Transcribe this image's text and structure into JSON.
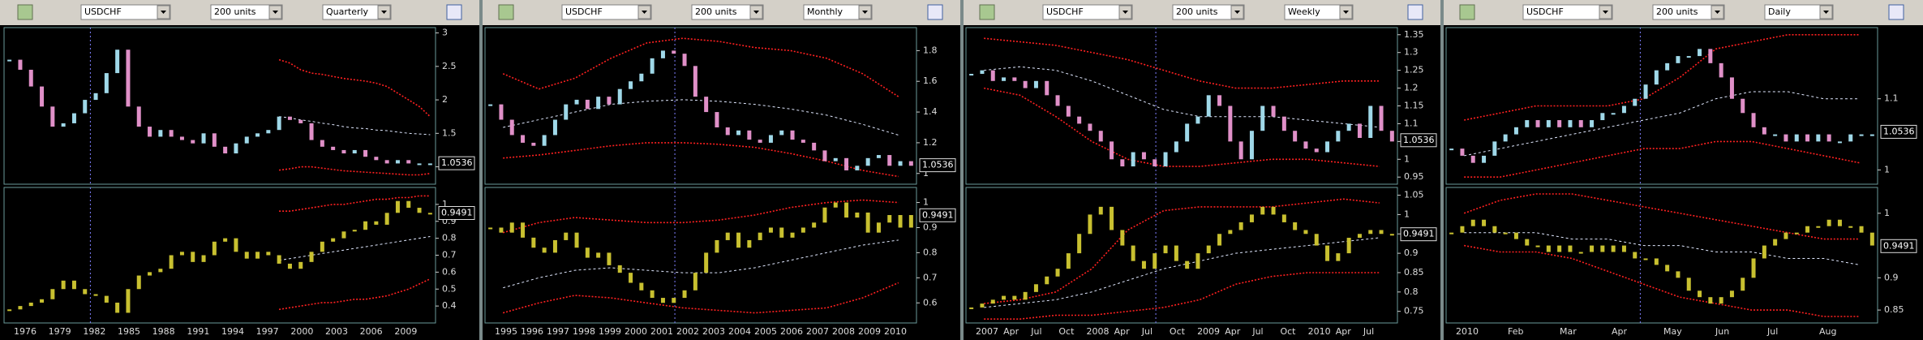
{
  "colors": {
    "up": "#9fd8e8",
    "down": "#e090c8",
    "indicator": "#c8c030",
    "band": "#ff2020",
    "mid": "#e0e8ff"
  },
  "panels": [
    {
      "toolbar": {
        "symbol": "USDCHF",
        "units": "200 units",
        "period": "Quarterly"
      },
      "xlabels": [
        "1976",
        "1979",
        "1982",
        "1985",
        "1988",
        "1991",
        "1994",
        "1997",
        "2000",
        "2003",
        "2006",
        "2009"
      ],
      "upper": {
        "ylim": [
          0.74,
          3.08
        ],
        "yticks": [
          1,
          1.5,
          2,
          2.5,
          3
        ],
        "last_label": 1.0536,
        "price": [
          2.6,
          2.45,
          2.2,
          1.9,
          1.6,
          1.65,
          1.8,
          2.0,
          2.1,
          2.4,
          2.75,
          1.9,
          1.6,
          1.45,
          1.55,
          1.45,
          1.4,
          1.35,
          1.5,
          1.3,
          1.2,
          1.35,
          1.45,
          1.5,
          1.55,
          1.75,
          1.7,
          1.65,
          1.4,
          1.3,
          1.25,
          1.2,
          1.25,
          1.15,
          1.1,
          1.05,
          1.1,
          1.05,
          1.05,
          1.05
        ],
        "band_upper": [
          null,
          null,
          null,
          null,
          null,
          null,
          null,
          null,
          null,
          null,
          null,
          null,
          null,
          null,
          null,
          null,
          null,
          null,
          null,
          null,
          null,
          null,
          null,
          null,
          null,
          2.6,
          2.55,
          2.45,
          2.4,
          2.38,
          2.35,
          2.32,
          2.3,
          2.28,
          2.25,
          2.2,
          2.1,
          2.0,
          1.9,
          1.75
        ],
        "band_mid": [
          null,
          null,
          null,
          null,
          null,
          null,
          null,
          null,
          null,
          null,
          null,
          null,
          null,
          null,
          null,
          null,
          null,
          null,
          null,
          null,
          null,
          null,
          null,
          null,
          null,
          1.75,
          1.73,
          1.7,
          1.68,
          1.65,
          1.63,
          1.6,
          1.58,
          1.57,
          1.55,
          1.54,
          1.52,
          1.5,
          1.49,
          1.48
        ],
        "band_lower": [
          null,
          null,
          null,
          null,
          null,
          null,
          null,
          null,
          null,
          null,
          null,
          null,
          null,
          null,
          null,
          null,
          null,
          null,
          null,
          null,
          null,
          null,
          null,
          null,
          null,
          0.95,
          0.97,
          1.0,
          1.0,
          0.98,
          0.96,
          0.94,
          0.93,
          0.92,
          0.91,
          0.9,
          0.89,
          0.88,
          0.88,
          0.9
        ]
      },
      "lower": {
        "ylim": [
          0.3,
          1.1
        ],
        "yticks": [
          0.4,
          0.5,
          0.6,
          0.7,
          0.8,
          0.9,
          1
        ],
        "last_label": 0.9491,
        "indicator": [
          0.38,
          0.4,
          0.42,
          0.44,
          0.5,
          0.55,
          0.5,
          0.47,
          0.46,
          0.42,
          0.36,
          0.5,
          0.58,
          0.6,
          0.62,
          0.7,
          0.72,
          0.66,
          0.7,
          0.78,
          0.8,
          0.72,
          0.68,
          0.72,
          0.7,
          0.65,
          0.62,
          0.66,
          0.72,
          0.78,
          0.8,
          0.84,
          0.85,
          0.9,
          0.88,
          0.95,
          1.02,
          0.98,
          0.95,
          0.95
        ],
        "band_upper": [
          null,
          null,
          null,
          null,
          null,
          null,
          null,
          null,
          null,
          null,
          null,
          null,
          null,
          null,
          null,
          null,
          null,
          null,
          null,
          null,
          null,
          null,
          null,
          null,
          null,
          0.96,
          0.96,
          0.97,
          0.98,
          0.99,
          1.0,
          1.0,
          1.01,
          1.02,
          1.03,
          1.03,
          1.04,
          1.04,
          1.05,
          1.05
        ],
        "band_mid": [
          null,
          null,
          null,
          null,
          null,
          null,
          null,
          null,
          null,
          null,
          null,
          null,
          null,
          null,
          null,
          null,
          null,
          null,
          null,
          null,
          null,
          null,
          null,
          null,
          null,
          0.67,
          0.68,
          0.69,
          0.7,
          0.71,
          0.72,
          0.73,
          0.74,
          0.75,
          0.76,
          0.77,
          0.78,
          0.79,
          0.8,
          0.81
        ],
        "band_lower": [
          null,
          null,
          null,
          null,
          null,
          null,
          null,
          null,
          null,
          null,
          null,
          null,
          null,
          null,
          null,
          null,
          null,
          null,
          null,
          null,
          null,
          null,
          null,
          null,
          null,
          0.38,
          0.39,
          0.4,
          0.41,
          0.42,
          0.42,
          0.43,
          0.44,
          0.44,
          0.45,
          0.46,
          0.48,
          0.5,
          0.53,
          0.56
        ]
      }
    },
    {
      "toolbar": {
        "symbol": "USDCHF",
        "units": "200 units",
        "period": "Monthly"
      },
      "xlabels": [
        "1995",
        "1996",
        "1997",
        "1998",
        "1999",
        "2000",
        "2001",
        "2002",
        "2003",
        "2004",
        "2005",
        "2006",
        "2007",
        "2008",
        "2009",
        "2010"
      ],
      "upper": {
        "ylim": [
          0.93,
          1.95
        ],
        "yticks": [
          1,
          1.2,
          1.4,
          1.6,
          1.8
        ],
        "last_label": 1.0536,
        "price": [
          1.45,
          1.35,
          1.25,
          1.2,
          1.18,
          1.25,
          1.35,
          1.45,
          1.48,
          1.42,
          1.5,
          1.45,
          1.55,
          1.6,
          1.65,
          1.75,
          1.8,
          1.78,
          1.7,
          1.5,
          1.4,
          1.3,
          1.25,
          1.28,
          1.22,
          1.2,
          1.25,
          1.28,
          1.22,
          1.2,
          1.15,
          1.08,
          1.1,
          1.02,
          1.05,
          1.1,
          1.12,
          1.05,
          1.08,
          1.05
        ],
        "band_upper": [
          1.65,
          1.55,
          1.62,
          1.75,
          1.85,
          1.88,
          1.86,
          1.82,
          1.8,
          1.75,
          1.65,
          1.5
        ],
        "band_mid": [
          1.3,
          1.35,
          1.4,
          1.45,
          1.47,
          1.48,
          1.47,
          1.45,
          1.42,
          1.38,
          1.32,
          1.25
        ],
        "band_lower": [
          1.1,
          1.12,
          1.15,
          1.18,
          1.2,
          1.2,
          1.19,
          1.17,
          1.13,
          1.08,
          1.02,
          0.98
        ]
      },
      "lower": {
        "ylim": [
          0.52,
          1.06
        ],
        "yticks": [
          0.6,
          0.7,
          0.8,
          0.9,
          1
        ],
        "last_label": 0.9491,
        "indicator": [
          0.9,
          0.88,
          0.92,
          0.86,
          0.82,
          0.8,
          0.85,
          0.88,
          0.82,
          0.78,
          0.8,
          0.75,
          0.72,
          0.68,
          0.65,
          0.62,
          0.6,
          0.62,
          0.65,
          0.72,
          0.8,
          0.85,
          0.88,
          0.82,
          0.85,
          0.88,
          0.9,
          0.86,
          0.88,
          0.9,
          0.92,
          0.98,
          1.0,
          0.94,
          0.96,
          0.88,
          0.92,
          0.95,
          0.9,
          0.95
        ],
        "band_upper": [
          0.88,
          0.92,
          0.94,
          0.93,
          0.92,
          0.92,
          0.93,
          0.95,
          0.98,
          1.0,
          1.01,
          1.0
        ],
        "band_mid": [
          0.66,
          0.7,
          0.73,
          0.74,
          0.73,
          0.72,
          0.72,
          0.74,
          0.77,
          0.8,
          0.83,
          0.85
        ],
        "band_lower": [
          0.56,
          0.6,
          0.63,
          0.62,
          0.6,
          0.58,
          0.57,
          0.56,
          0.57,
          0.58,
          0.62,
          0.68
        ]
      }
    },
    {
      "toolbar": {
        "symbol": "USDCHF",
        "units": "200 units",
        "period": "Weekly"
      },
      "xlabels": [
        "2007",
        "Apr",
        "Jul",
        "Oct",
        "2008",
        "Apr",
        "Jul",
        "Oct",
        "2009",
        "Apr",
        "Jul",
        "Oct",
        "2010",
        "Apr",
        "Jul"
      ],
      "upper": {
        "ylim": [
          0.93,
          1.37
        ],
        "yticks": [
          0.95,
          1,
          1.05,
          1.1,
          1.15,
          1.2,
          1.25,
          1.3,
          1.35
        ],
        "last_label": 1.0536,
        "price": [
          1.24,
          1.25,
          1.22,
          1.23,
          1.22,
          1.2,
          1.22,
          1.18,
          1.15,
          1.12,
          1.1,
          1.08,
          1.05,
          1.0,
          0.98,
          1.02,
          1.0,
          0.98,
          1.02,
          1.05,
          1.1,
          1.12,
          1.18,
          1.15,
          1.05,
          1.0,
          1.08,
          1.15,
          1.12,
          1.08,
          1.05,
          1.03,
          1.02,
          1.05,
          1.08,
          1.1,
          1.06,
          1.15,
          1.08,
          1.05
        ],
        "band_upper": [
          1.34,
          1.33,
          1.32,
          1.3,
          1.28,
          1.25,
          1.22,
          1.2,
          1.2,
          1.21,
          1.22,
          1.22
        ],
        "band_mid": [
          1.25,
          1.26,
          1.25,
          1.22,
          1.18,
          1.14,
          1.12,
          1.12,
          1.12,
          1.11,
          1.1,
          1.09
        ],
        "band_lower": [
          1.2,
          1.18,
          1.12,
          1.05,
          1.0,
          0.98,
          0.98,
          0.99,
          1.0,
          1.0,
          0.99,
          0.98
        ]
      },
      "lower": {
        "ylim": [
          0.72,
          1.07
        ],
        "yticks": [
          0.75,
          0.8,
          0.85,
          0.9,
          0.95,
          1,
          1.05
        ],
        "last_label": 0.9491,
        "indicator": [
          0.76,
          0.77,
          0.78,
          0.79,
          0.78,
          0.8,
          0.82,
          0.84,
          0.86,
          0.9,
          0.95,
          1.0,
          1.02,
          0.96,
          0.92,
          0.88,
          0.86,
          0.9,
          0.92,
          0.88,
          0.86,
          0.9,
          0.92,
          0.95,
          0.96,
          0.98,
          1.0,
          1.02,
          1.0,
          0.98,
          0.96,
          0.95,
          0.92,
          0.88,
          0.9,
          0.94,
          0.95,
          0.96,
          0.95,
          0.95
        ],
        "band_upper": [
          0.77,
          0.78,
          0.8,
          0.86,
          0.96,
          1.01,
          1.02,
          1.02,
          1.02,
          1.03,
          1.04,
          1.03
        ],
        "band_mid": [
          0.76,
          0.77,
          0.78,
          0.8,
          0.83,
          0.86,
          0.88,
          0.9,
          0.91,
          0.92,
          0.93,
          0.94
        ],
        "band_lower": [
          0.73,
          0.73,
          0.74,
          0.74,
          0.75,
          0.76,
          0.78,
          0.82,
          0.84,
          0.85,
          0.85,
          0.85
        ]
      }
    },
    {
      "toolbar": {
        "symbol": "USDCHF",
        "units": "200 units",
        "period": "Daily"
      },
      "xlabels": [
        "2010",
        "Feb",
        "Mar",
        "Apr",
        "May",
        "Jun",
        "Jul",
        "Aug"
      ],
      "upper": {
        "ylim": [
          0.98,
          1.2
        ],
        "yticks": [
          1,
          1.1
        ],
        "last_label": 1.0536,
        "price": [
          1.03,
          1.02,
          1.01,
          1.02,
          1.04,
          1.05,
          1.06,
          1.07,
          1.06,
          1.07,
          1.06,
          1.07,
          1.06,
          1.07,
          1.08,
          1.08,
          1.09,
          1.1,
          1.12,
          1.14,
          1.15,
          1.16,
          1.16,
          1.17,
          1.15,
          1.13,
          1.1,
          1.08,
          1.06,
          1.05,
          1.05,
          1.04,
          1.05,
          1.04,
          1.05,
          1.04,
          1.04,
          1.05,
          1.05,
          1.05
        ],
        "band_upper": [
          1.07,
          1.08,
          1.09,
          1.09,
          1.09,
          1.1,
          1.13,
          1.17,
          1.18,
          1.19,
          1.19,
          1.19
        ],
        "band_mid": [
          1.02,
          1.03,
          1.04,
          1.05,
          1.06,
          1.07,
          1.08,
          1.1,
          1.11,
          1.11,
          1.1,
          1.1
        ],
        "band_lower": [
          0.99,
          0.99,
          1.0,
          1.01,
          1.02,
          1.03,
          1.03,
          1.04,
          1.04,
          1.03,
          1.02,
          1.01
        ]
      },
      "lower": {
        "ylim": [
          0.83,
          1.04
        ],
        "yticks": [
          0.85,
          0.9,
          1
        ],
        "last_label": 0.9491,
        "indicator": [
          0.97,
          0.98,
          0.99,
          0.98,
          0.97,
          0.97,
          0.96,
          0.95,
          0.95,
          0.94,
          0.95,
          0.94,
          0.94,
          0.95,
          0.94,
          0.95,
          0.94,
          0.93,
          0.93,
          0.92,
          0.91,
          0.9,
          0.88,
          0.87,
          0.86,
          0.87,
          0.88,
          0.9,
          0.93,
          0.95,
          0.96,
          0.97,
          0.97,
          0.98,
          0.98,
          0.99,
          0.98,
          0.98,
          0.97,
          0.95
        ],
        "band_upper": [
          1.0,
          1.02,
          1.03,
          1.03,
          1.02,
          1.01,
          1.0,
          0.99,
          0.98,
          0.97,
          0.96,
          0.96
        ],
        "band_mid": [
          0.97,
          0.97,
          0.97,
          0.96,
          0.96,
          0.95,
          0.95,
          0.94,
          0.94,
          0.93,
          0.93,
          0.92
        ],
        "band_lower": [
          0.95,
          0.94,
          0.94,
          0.93,
          0.91,
          0.89,
          0.87,
          0.86,
          0.85,
          0.85,
          0.84,
          0.84
        ]
      }
    }
  ]
}
